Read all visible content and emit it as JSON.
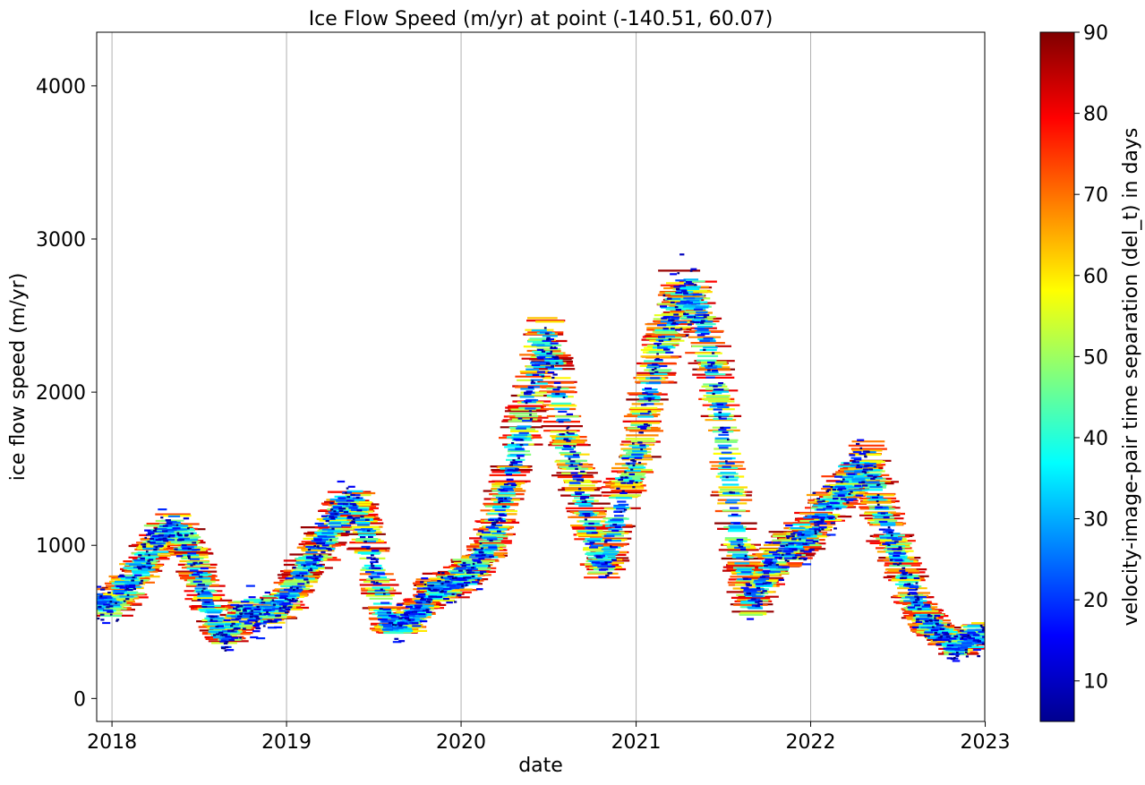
{
  "chart_data": {
    "type": "scatter",
    "title": "Ice Flow Speed (m/yr) at point (-140.51, 60.07)",
    "xlabel": "date",
    "ylabel": "ice flow speed (m/yr)",
    "xlim": [
      "2017-11-30",
      "2022-12-31"
    ],
    "ylim": [
      -150,
      4350
    ],
    "xticks": [
      "2018",
      "2019",
      "2020",
      "2021",
      "2022",
      "2023"
    ],
    "yticks": [
      0,
      1000,
      2000,
      3000,
      4000
    ],
    "x_grid": true,
    "y_grid": false,
    "marker": "horizontal line segments spanning each image-pair interval",
    "colormap": "jet",
    "colorbar": {
      "label": "velocity-image-pair time separation (del_t) in days",
      "range": [
        5,
        90
      ],
      "ticks": [
        10,
        20,
        30,
        40,
        50,
        60,
        70,
        80,
        90
      ]
    },
    "series": [
      {
        "points": [
          [
            "2017-12-05",
            620
          ],
          [
            "2018-01-01",
            600
          ],
          [
            "2018-01-20",
            680
          ],
          [
            "2018-02-10",
            760
          ],
          [
            "2018-03-01",
            850
          ],
          [
            "2018-03-20",
            960
          ],
          [
            "2018-04-10",
            1050
          ],
          [
            "2018-05-01",
            1100
          ],
          [
            "2018-05-20",
            1090
          ],
          [
            "2018-06-10",
            1000
          ],
          [
            "2018-07-01",
            800
          ],
          [
            "2018-07-20",
            620
          ],
          [
            "2018-08-10",
            480
          ],
          [
            "2018-08-25",
            380
          ],
          [
            "2018-09-15",
            490
          ],
          [
            "2018-10-10",
            560
          ],
          [
            "2018-11-01",
            560
          ],
          [
            "2018-12-01",
            570
          ],
          [
            "2019-01-01",
            640
          ],
          [
            "2019-02-01",
            800
          ],
          [
            "2019-03-01",
            940
          ],
          [
            "2019-04-01",
            1100
          ],
          [
            "2019-05-01",
            1250
          ],
          [
            "2019-06-01",
            1250
          ],
          [
            "2019-07-01",
            900
          ],
          [
            "2019-08-01",
            480
          ],
          [
            "2019-09-01",
            470
          ],
          [
            "2019-10-01",
            560
          ],
          [
            "2019-11-01",
            690
          ],
          [
            "2019-12-01",
            750
          ],
          [
            "2020-01-01",
            780
          ],
          [
            "2020-02-01",
            870
          ],
          [
            "2020-03-01",
            1000
          ],
          [
            "2020-04-01",
            1300
          ],
          [
            "2020-05-01",
            1700
          ],
          [
            "2020-06-01",
            2050
          ],
          [
            "2020-06-20",
            2350
          ],
          [
            "2020-07-10",
            2250
          ],
          [
            "2020-08-01",
            1800
          ],
          [
            "2020-09-01",
            1450
          ],
          [
            "2020-10-01",
            1080
          ],
          [
            "2020-10-20",
            850
          ],
          [
            "2020-11-10",
            1000
          ],
          [
            "2020-12-01",
            1300
          ],
          [
            "2021-01-01",
            1550
          ],
          [
            "2021-02-01",
            2050
          ],
          [
            "2021-03-01",
            2400
          ],
          [
            "2021-04-01",
            2600
          ],
          [
            "2021-05-01",
            2650
          ],
          [
            "2021-06-01",
            2300
          ],
          [
            "2021-07-01",
            1800
          ],
          [
            "2021-08-01",
            1050
          ],
          [
            "2021-09-01",
            600
          ],
          [
            "2021-10-01",
            850
          ],
          [
            "2021-11-01",
            950
          ],
          [
            "2021-12-01",
            1000
          ],
          [
            "2022-01-01",
            1100
          ],
          [
            "2022-02-01",
            1230
          ],
          [
            "2022-03-01",
            1320
          ],
          [
            "2022-04-01",
            1420
          ],
          [
            "2022-05-01",
            1550
          ],
          [
            "2022-06-01",
            1200
          ],
          [
            "2022-07-01",
            950
          ],
          [
            "2022-08-01",
            680
          ],
          [
            "2022-09-01",
            500
          ],
          [
            "2022-10-01",
            420
          ],
          [
            "2022-11-01",
            340
          ],
          [
            "2022-12-20",
            420
          ]
        ]
      }
    ]
  }
}
